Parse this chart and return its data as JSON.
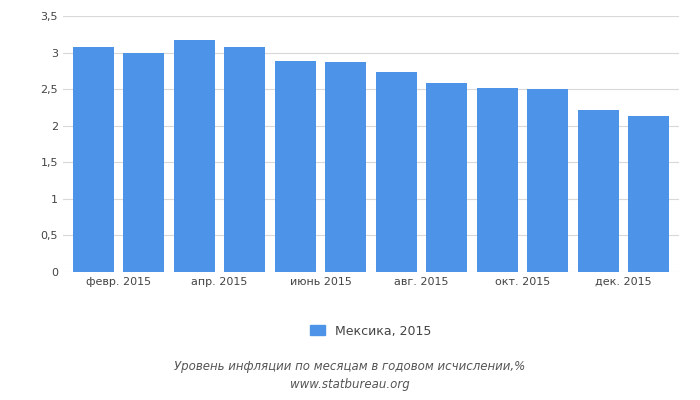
{
  "values": [
    3.07,
    3.0,
    3.17,
    3.08,
    2.88,
    2.87,
    2.74,
    2.59,
    2.52,
    2.5,
    2.21,
    2.13
  ],
  "bar_color": "#4d94e8",
  "xlabels": [
    "февр. 2015",
    "апр. 2015",
    "июнь 2015",
    "авг. 2015",
    "окт. 2015",
    "дек. 2015"
  ],
  "xtick_positions": [
    1.5,
    3.5,
    5.5,
    7.5,
    9.5,
    11.5
  ],
  "ylim": [
    0,
    3.5
  ],
  "yticks": [
    0,
    0.5,
    1.0,
    1.5,
    2.0,
    2.5,
    3.0,
    3.5
  ],
  "ytick_labels": [
    "0",
    "0,5",
    "1",
    "1,5",
    "2",
    "2,5",
    "3",
    "3,5"
  ],
  "legend_label": "Мексика, 2015",
  "footer_line1": "Уровень инфляции по месяцам в годовом исчислении,%",
  "footer_line2": "www.statbureau.org",
  "background_color": "#ffffff",
  "plot_bg_color": "#ffffff",
  "grid_color": "#d8d8d8"
}
